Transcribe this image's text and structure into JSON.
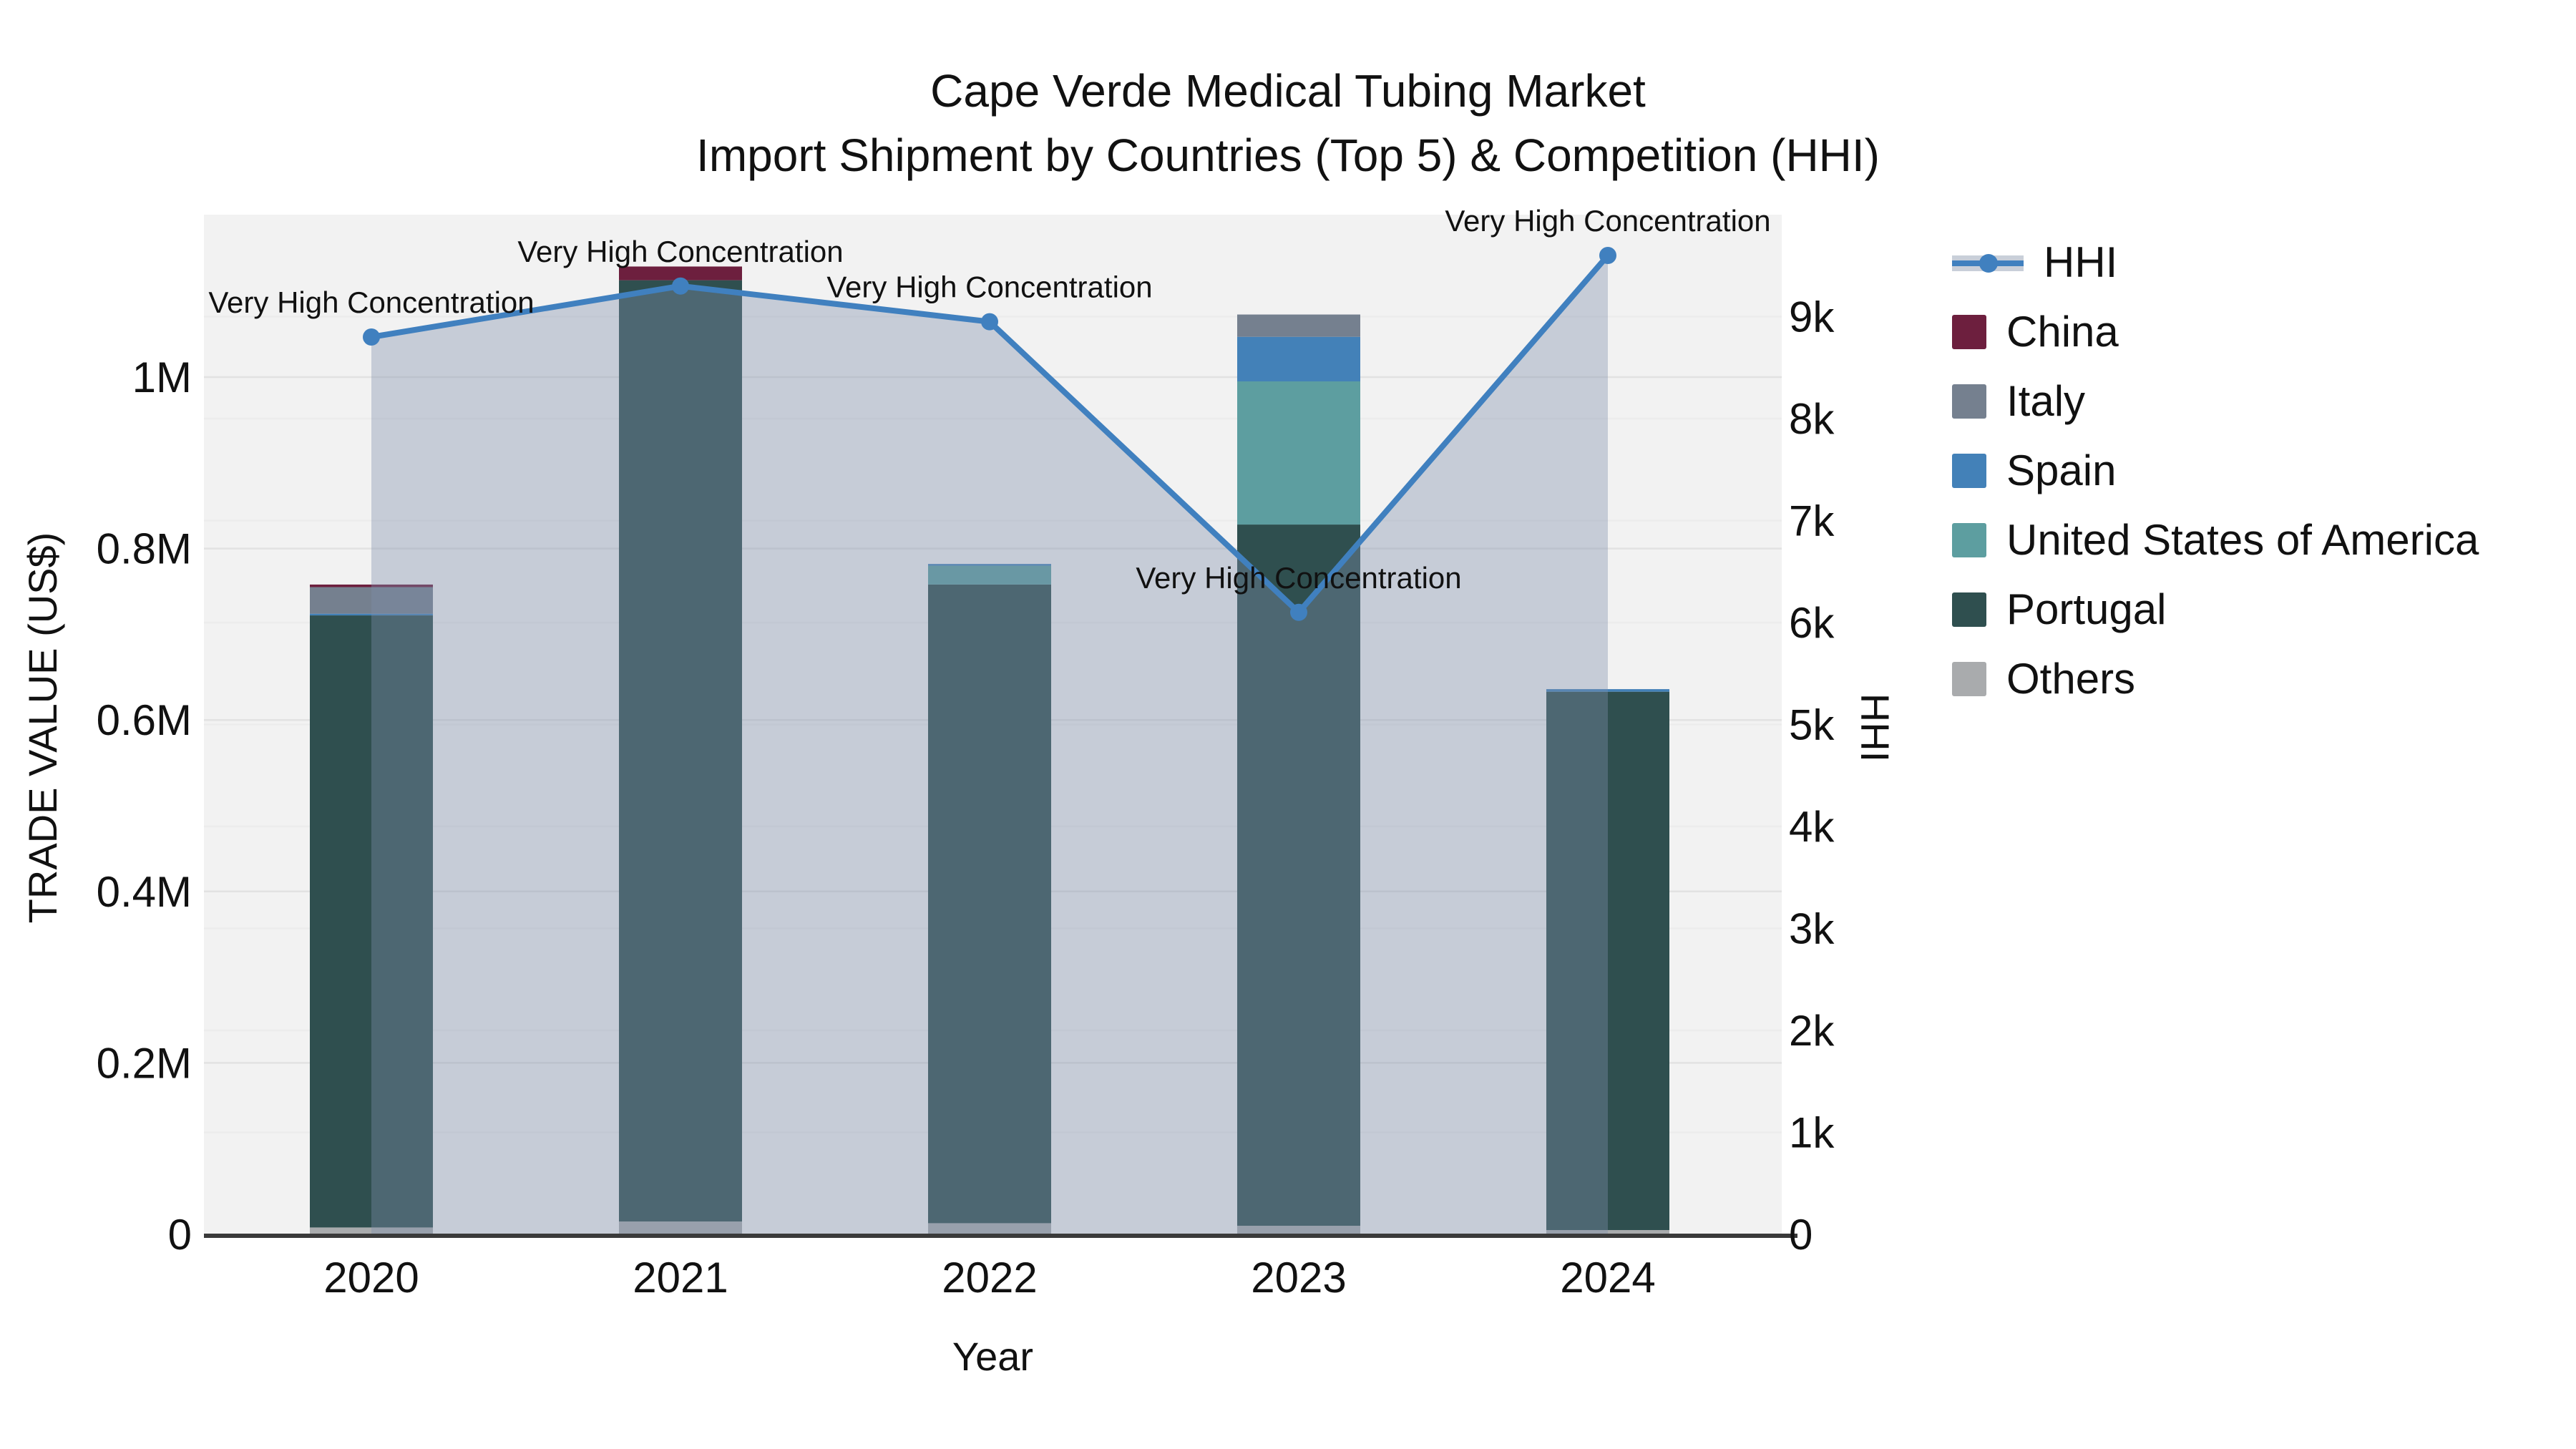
{
  "title": {
    "line1": "Cape Verde Medical Tubing Market",
    "line2": "Import Shipment by Countries (Top 5) & Competition (HHI)"
  },
  "axes": {
    "left_title": "TRADE VALUE (US$)",
    "left_ticks": [
      "0",
      "0.2M",
      "0.4M",
      "0.6M",
      "0.8M",
      "1M"
    ],
    "left_tick_values": [
      0,
      200000,
      400000,
      600000,
      800000,
      1000000
    ],
    "right_title": "HHI",
    "right_ticks": [
      "0",
      "1k",
      "2k",
      "3k",
      "4k",
      "5k",
      "6k",
      "7k",
      "8k",
      "9k"
    ],
    "right_tick_values": [
      0,
      1000,
      2000,
      3000,
      4000,
      5000,
      6000,
      7000,
      8000,
      9000
    ],
    "x_title": "Year"
  },
  "legend": [
    {
      "label": "HHI",
      "kind": "line",
      "color": "#4080bf"
    },
    {
      "label": "China",
      "kind": "square",
      "color": "#6d1f3e"
    },
    {
      "label": "Italy",
      "kind": "square",
      "color": "#75808f"
    },
    {
      "label": "Spain",
      "kind": "square",
      "color": "#4381b8"
    },
    {
      "label": "United States of America",
      "kind": "square",
      "color": "#5d9ea0"
    },
    {
      "label": "Portugal",
      "kind": "square",
      "color": "#2f4f4f"
    },
    {
      "label": "Others",
      "kind": "square",
      "color": "#a9abad"
    }
  ],
  "chart_data": {
    "type": "combo-stacked-bar-line",
    "title": "Cape Verde Medical Tubing Market Import Shipment by Countries (Top 5) & Competition (HHI)",
    "categories": [
      "2020",
      "2021",
      "2022",
      "2023",
      "2024"
    ],
    "bar_axis": "left",
    "xlabel": "Year",
    "ylabel_left": "TRADE VALUE (US$)",
    "ylabel_right": "HHI",
    "ylim_left": [
      0,
      1190000
    ],
    "ylim_right": [
      0,
      10000
    ],
    "grid": true,
    "legend_position": "right",
    "series": [
      {
        "name": "China",
        "color": "#6d1f3e",
        "values": [
          3000,
          16000,
          0,
          0,
          0
        ]
      },
      {
        "name": "Italy",
        "color": "#75808f",
        "values": [
          31000,
          0,
          0,
          26000,
          0
        ]
      },
      {
        "name": "Spain",
        "color": "#4381b8",
        "values": [
          2000,
          0,
          2000,
          52000,
          3000
        ]
      },
      {
        "name": "United States of America",
        "color": "#5d9ea0",
        "values": [
          0,
          0,
          22000,
          167000,
          0
        ]
      },
      {
        "name": "Portugal",
        "color": "#2f4f4f",
        "values": [
          714000,
          1098000,
          745000,
          818000,
          628000
        ]
      },
      {
        "name": "Others",
        "color": "#a9abad",
        "values": [
          8000,
          15000,
          13000,
          10000,
          5000
        ]
      }
    ],
    "stack_order_bottom_to_top": [
      "Others",
      "Portugal",
      "United States of America",
      "Spain",
      "Italy",
      "China"
    ],
    "bar_totals": [
      758000,
      1129000,
      782000,
      1073000,
      636000
    ],
    "line_series": {
      "name": "HHI",
      "axis": "right",
      "color": "#4080bf",
      "area_fill": "rgba(125,142,170,0.38)",
      "values": [
        8800,
        9300,
        8950,
        6100,
        9600
      ]
    },
    "annotations": [
      "Very High Concentration",
      "Very High Concentration",
      "Very High Concentration",
      "Very High Concentration",
      "Very High Concentration"
    ],
    "plot_background": "#f2f2f2"
  }
}
